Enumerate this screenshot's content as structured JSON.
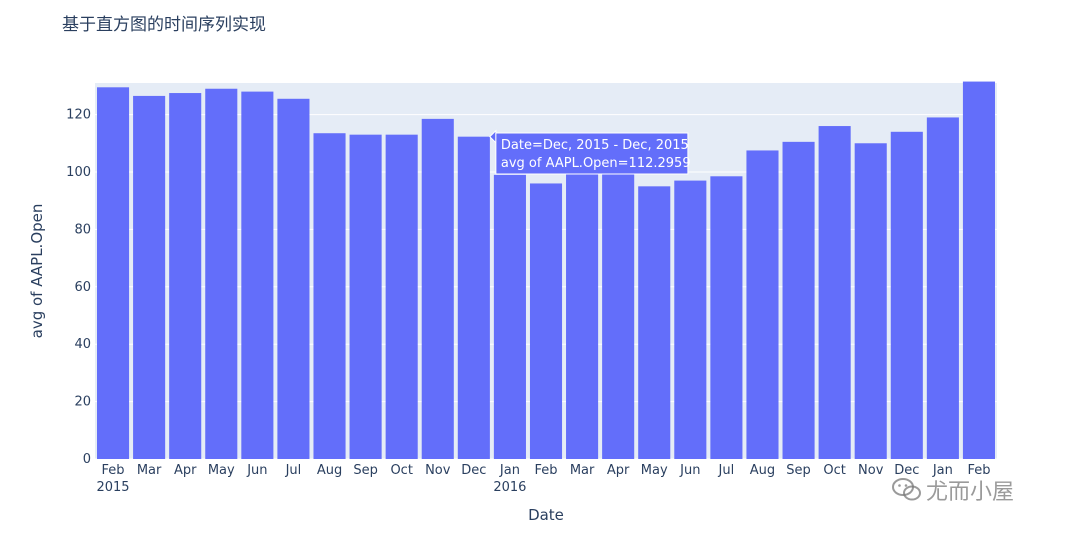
{
  "title": "基于直方图的时间序列实现",
  "watermark": "尤而小屋",
  "chart_data": {
    "type": "bar",
    "title": "基于直方图的时间序列实现",
    "xlabel": "Date",
    "ylabel": "avg of AAPL.Open",
    "ylim": [
      0,
      131
    ],
    "yticks": [
      0,
      20,
      40,
      60,
      80,
      100,
      120
    ],
    "grid": true,
    "bar_color": "#636efa",
    "plot_bg": "#e5ecf6",
    "categories": [
      "Feb",
      "Mar",
      "Apr",
      "May",
      "Jun",
      "Jul",
      "Aug",
      "Sep",
      "Oct",
      "Nov",
      "Dec",
      "Jan",
      "Feb",
      "Mar",
      "Apr",
      "May",
      "Jun",
      "Jul",
      "Aug",
      "Sep",
      "Oct",
      "Nov",
      "Dec",
      "Jan",
      "Feb"
    ],
    "year_labels": [
      {
        "index": 0,
        "label": "2015"
      },
      {
        "index": 11,
        "label": "2016"
      }
    ],
    "series": [
      {
        "values": [
          129.5,
          126.5,
          127.5,
          129.0,
          128.0,
          125.5,
          113.5,
          113.0,
          113.0,
          118.5,
          112.3,
          99.0,
          96.0,
          104.0,
          105.0,
          95.0,
          97.0,
          98.5,
          107.5,
          110.5,
          116.0,
          110.0,
          114.0,
          119.0,
          131.5
        ]
      }
    ],
    "tooltip": {
      "index": 10,
      "line1": "Date=Dec, 2015 - Dec, 2015",
      "line2": "avg of AAPL.Open=112.2959"
    }
  }
}
